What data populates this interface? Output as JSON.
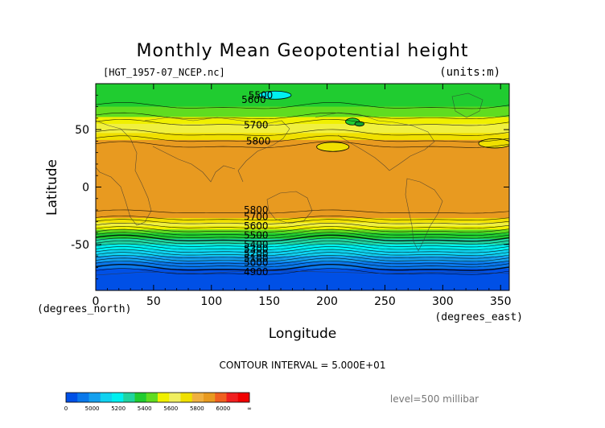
{
  "chart_data": {
    "type": "heatmap",
    "title": "Monthly Mean Geopotential height",
    "subtitle_left": "[HGT_1957-07_NCEP.nc]",
    "subtitle_right": "(units:m)",
    "xlabel": "Longitude",
    "ylabel": "Latitude",
    "x_unit": "(degrees_east)",
    "y_unit": "(degrees_north)",
    "xlim": [
      0,
      357.5
    ],
    "ylim": [
      -90,
      90
    ],
    "x_ticks": [
      0,
      50,
      100,
      150,
      200,
      250,
      300,
      350
    ],
    "y_ticks": [
      50,
      0,
      -50
    ],
    "contour_interval": "CONTOUR INTERVAL = 5.000E+01",
    "level": "level=500 millibar",
    "zonal_profile": {
      "lat": [
        90,
        80,
        70,
        62,
        58,
        54,
        48,
        44,
        40,
        36,
        30,
        20,
        0,
        -20,
        -26,
        -30,
        -34,
        -38,
        -42,
        -46,
        -50,
        -54,
        -58,
        -62,
        -66,
        -70,
        -74,
        -80,
        -90
      ],
      "height": [
        5560,
        5580,
        5600,
        5640,
        5680,
        5710,
        5740,
        5770,
        5810,
        5850,
        5870,
        5880,
        5880,
        5860,
        5820,
        5760,
        5700,
        5640,
        5560,
        5480,
        5400,
        5320,
        5240,
        5160,
        5080,
        5010,
        4950,
        4920,
        4900
      ]
    },
    "contour_labels": [
      {
        "text": "5500",
        "lon": 132,
        "lat": 80
      },
      {
        "text": "5600",
        "lon": 126,
        "lat": 76
      },
      {
        "text": "5700",
        "lon": 128,
        "lat": 54
      },
      {
        "text": "5800",
        "lon": 130,
        "lat": 40
      },
      {
        "text": "5800",
        "lon": 128,
        "lat": -20
      },
      {
        "text": "5700",
        "lon": 128,
        "lat": -26
      },
      {
        "text": "5600",
        "lon": 128,
        "lat": -34
      },
      {
        "text": "5500",
        "lon": 128,
        "lat": -42
      },
      {
        "text": "5400",
        "lon": 128,
        "lat": -50
      },
      {
        "text": "5300",
        "lon": 128,
        "lat": -54
      },
      {
        "text": "5200",
        "lon": 128,
        "lat": -58
      },
      {
        "text": "5100",
        "lon": 128,
        "lat": -62
      },
      {
        "text": "5000",
        "lon": 128,
        "lat": -66
      },
      {
        "text": "4900",
        "lon": 128,
        "lat": -74
      }
    ],
    "colorbar": {
      "ticks": [
        "0",
        "5000",
        "5200",
        "5400",
        "5600",
        "5800",
        "6000",
        "∞"
      ],
      "colors": [
        "#0050e6",
        "#0a78ea",
        "#14a0ee",
        "#10d2f0",
        "#00f0f0",
        "#20d4a0",
        "#20cc30",
        "#60dc20",
        "#f0f000",
        "#f0ee60",
        "#f0e000",
        "#f0b040",
        "#e89a20",
        "#f06020",
        "#f02020",
        "#f00000"
      ]
    },
    "fill_levels": [
      {
        "min": 0,
        "color": "#0050e6"
      },
      {
        "min": 5000,
        "color": "#0a78ea"
      },
      {
        "min": 5100,
        "color": "#14a0ee"
      },
      {
        "min": 5200,
        "color": "#10d2f0"
      },
      {
        "min": 5300,
        "color": "#00f0f0"
      },
      {
        "min": 5400,
        "color": "#20d4a0"
      },
      {
        "min": 5500,
        "color": "#20cc30"
      },
      {
        "min": 5600,
        "color": "#60dc20"
      },
      {
        "min": 5650,
        "color": "#f0f000"
      },
      {
        "min": 5700,
        "color": "#f0f040"
      },
      {
        "min": 5750,
        "color": "#f0e000"
      },
      {
        "min": 5800,
        "color": "#e89a20"
      }
    ],
    "anomalies": [
      {
        "lon": 155,
        "lat": 80,
        "rlon": 14,
        "rlat": 3.5,
        "color": "#00f0f0",
        "name": "polar-low"
      },
      {
        "lon": 222,
        "lat": 57,
        "rlon": 6,
        "rlat": 3,
        "color": "#20cc30",
        "name": "pacific-trough"
      },
      {
        "lon": 228,
        "lat": 55,
        "rlon": 4,
        "rlat": 2,
        "color": "#10a030",
        "name": "pacific-trough-core"
      },
      {
        "lon": 205,
        "lat": 35,
        "rlon": 14,
        "rlat": 4,
        "color": "#f0e000",
        "name": "subtropical-dip"
      },
      {
        "lon": 345,
        "lat": 38,
        "rlon": 14,
        "rlat": 4,
        "color": "#f0e000",
        "name": "atlantic-dip"
      }
    ]
  }
}
